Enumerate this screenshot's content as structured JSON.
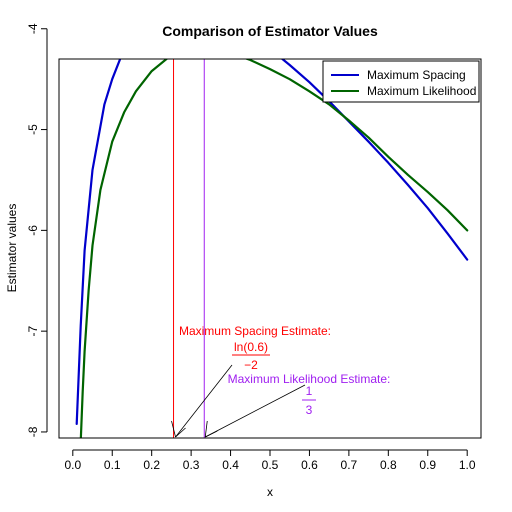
{
  "chart_data": {
    "type": "line",
    "title": "Comparison of Estimator Values",
    "xlabel": "x",
    "ylabel": "Estimator values",
    "xlim": [
      -0.035,
      1.035
    ],
    "ylim": [
      -8.06,
      -4.3
    ],
    "x_ticks": [
      "0.0",
      "0.1",
      "0.2",
      "0.3",
      "0.4",
      "0.5",
      "0.6",
      "0.7",
      "0.8",
      "0.9",
      "1.0"
    ],
    "x_tick_values": [
      0,
      0.1,
      0.2,
      0.3,
      0.4,
      0.5,
      0.6,
      0.7,
      0.8,
      0.9,
      1.0
    ],
    "y_ticks": [
      "-8",
      "-7",
      "-6",
      "-5",
      "-4"
    ],
    "y_tick_values": [
      -8,
      -7,
      -6,
      -5,
      -4
    ],
    "grid": false,
    "legend": {
      "placement": "top-right",
      "entries": [
        "Maximum Spacing",
        "Maximum Likelihood"
      ]
    },
    "series": [
      {
        "name": "Maximum Spacing",
        "color": "#0000cc",
        "x": [
          0.01,
          0.02,
          0.03,
          0.05,
          0.08,
          0.1,
          0.13,
          0.16,
          0.2,
          0.23,
          0.255,
          0.28,
          0.3,
          0.35,
          0.4,
          0.45,
          0.5,
          0.55,
          0.6,
          0.65,
          0.7,
          0.75,
          0.8,
          0.85,
          0.9,
          0.95,
          1.0
        ],
        "y": [
          -7.92,
          -6.95,
          -6.2,
          -5.4,
          -4.75,
          -4.5,
          -4.2,
          -4.0,
          -3.85,
          -3.8,
          -3.78,
          -3.79,
          -3.8,
          -3.86,
          -3.95,
          -4.07,
          -4.2,
          -4.36,
          -4.53,
          -4.72,
          -4.92,
          -5.12,
          -5.33,
          -5.55,
          -5.78,
          -6.03,
          -6.29
        ]
      },
      {
        "name": "Maximum Likelihood",
        "color": "#006400",
        "x": [
          0.02,
          0.025,
          0.03,
          0.04,
          0.05,
          0.07,
          0.1,
          0.13,
          0.16,
          0.2,
          0.25,
          0.3,
          0.333,
          0.35,
          0.4,
          0.45,
          0.5,
          0.55,
          0.6,
          0.65,
          0.7,
          0.75,
          0.8,
          0.85,
          0.9,
          0.95,
          1.0
        ],
        "y": [
          -8.1,
          -7.6,
          -7.2,
          -6.6,
          -6.15,
          -5.6,
          -5.12,
          -4.83,
          -4.62,
          -4.42,
          -4.26,
          -4.2,
          -4.19,
          -4.19,
          -4.24,
          -4.31,
          -4.4,
          -4.5,
          -4.62,
          -4.75,
          -4.91,
          -5.08,
          -5.27,
          -5.45,
          -5.62,
          -5.8,
          -6.0
        ]
      }
    ],
    "vertical_lines": [
      {
        "x": 0.2554,
        "color": "#ff0000"
      },
      {
        "x": 0.3333,
        "color": "#a020f0"
      }
    ],
    "annotations": [
      {
        "label": "Maximum Spacing Estimate:",
        "formula_numerator": "ln(0.6)",
        "formula_denominator": "−2",
        "color": "#ff0000"
      },
      {
        "label": "Maximum Likelihood Estimate:",
        "formula_numerator": "1",
        "formula_denominator": "3",
        "color": "#a020f0"
      }
    ]
  }
}
